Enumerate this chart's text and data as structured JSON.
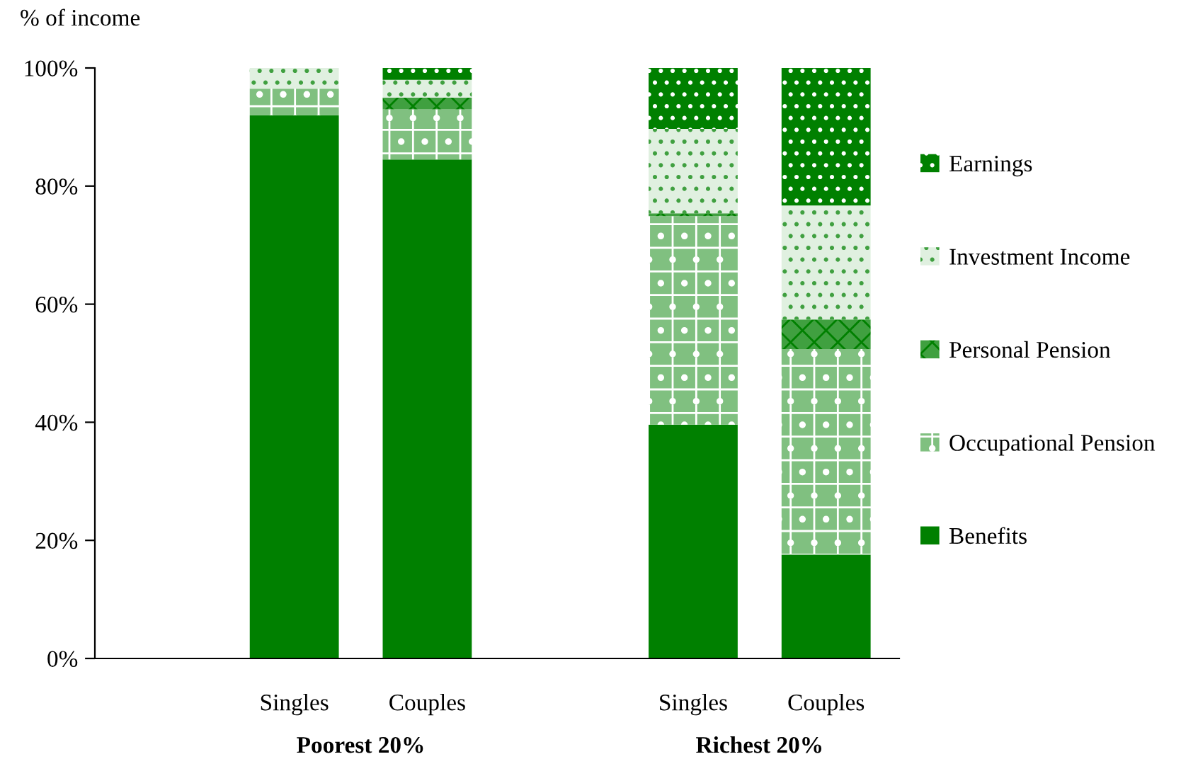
{
  "chart_data": {
    "type": "bar",
    "stacked": true,
    "ylabel": "% of income",
    "categories": [
      "Singles",
      "Couples",
      "Singles",
      "Couples"
    ],
    "series": [
      {
        "name": "Benefits",
        "color": "#008000",
        "values": [
          92,
          84.5,
          39.6,
          17.6
        ]
      },
      {
        "name": "Occupational Pension",
        "color": "#80c080",
        "values": [
          4.5,
          8.5,
          35.3,
          34.8
        ]
      },
      {
        "name": "Personal Pension",
        "color": "#40a040",
        "values": [
          0,
          2,
          0.5,
          5
        ]
      },
      {
        "name": "Investment Income",
        "color": "#e0f0e0",
        "values": [
          3.5,
          3,
          14.3,
          19.3
        ]
      },
      {
        "name": "Earnings",
        "color": "#008000",
        "values": [
          0,
          2,
          10.3,
          23.3
        ]
      }
    ],
    "annotations": [
      "Poorest 20%",
      "Richest 20%"
    ],
    "ylim": [
      0,
      100
    ],
    "yticks": [
      {
        "value": 0,
        "label": "0%"
      },
      {
        "value": 20,
        "label": "20%"
      },
      {
        "value": 40,
        "label": "40%"
      },
      {
        "value": 60,
        "label": "60%"
      },
      {
        "value": 80,
        "label": "80%"
      },
      {
        "value": 100,
        "label": "100%"
      }
    ],
    "grid": false,
    "legend": "right"
  }
}
